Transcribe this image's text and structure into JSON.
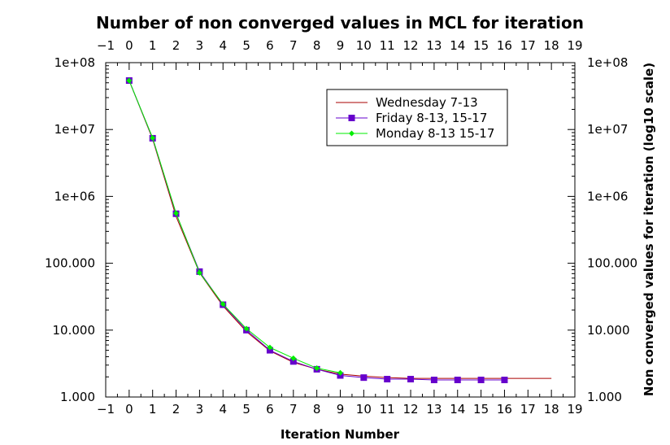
{
  "chart_data": {
    "type": "line",
    "title": "Number of non converged values in MCL for iteration",
    "xlabel": "Iteration Number",
    "ylabel": "Non converged values for iteration (log10 scale)",
    "xlim": [
      -1,
      19
    ],
    "x_ticks": [
      "−1",
      "0",
      "1",
      "2",
      "3",
      "4",
      "5",
      "6",
      "7",
      "8",
      "9",
      "10",
      "11",
      "12",
      "13",
      "14",
      "15",
      "16",
      "17",
      "18",
      "19"
    ],
    "y_scale": "log10",
    "ylim": [
      1000,
      100000000
    ],
    "y_ticks": [
      {
        "value": 1000,
        "label": "1.000"
      },
      {
        "value": 10000,
        "label": "10.000"
      },
      {
        "value": 100000,
        "label": "100.000"
      },
      {
        "value": 1000000,
        "label": "1e+06"
      },
      {
        "value": 10000000,
        "label": "1e+07"
      },
      {
        "value": 100000000,
        "label": "1e+08"
      }
    ],
    "grid": false,
    "legend_position": "top-right",
    "series": [
      {
        "name": "Wednesday 7-13",
        "color": "#aa0000",
        "marker": "none",
        "x": [
          0,
          1,
          2,
          3,
          4,
          5,
          6,
          7,
          8,
          9,
          10,
          11,
          12,
          13,
          14,
          15,
          16,
          17,
          18
        ],
        "values": [
          54000000,
          7200000,
          500000,
          72000,
          23000,
          9500,
          4900,
          3300,
          2600,
          2200,
          2050,
          1950,
          1900,
          1900,
          1900,
          1900,
          1900,
          1900,
          1900
        ]
      },
      {
        "name": "Friday 8-13, 15-17",
        "color": "#6600cc",
        "marker": "square",
        "x": [
          0,
          1,
          2,
          3,
          4,
          5,
          6,
          7,
          8,
          9,
          10,
          11,
          12,
          13,
          14,
          15,
          16
        ],
        "values": [
          54000000,
          7400000,
          550000,
          75000,
          24000,
          10000,
          5000,
          3400,
          2600,
          2100,
          1950,
          1850,
          1850,
          1800,
          1800,
          1800,
          1800
        ]
      },
      {
        "name": "Monday 8-13 15-17",
        "color": "#00ee00",
        "marker": "diamond",
        "x": [
          0,
          1,
          2,
          3,
          4,
          5,
          6,
          7,
          8,
          9
        ],
        "values": [
          54000000,
          7500000,
          560000,
          72000,
          24500,
          10500,
          5500,
          3800,
          2700,
          2300
        ]
      }
    ]
  }
}
